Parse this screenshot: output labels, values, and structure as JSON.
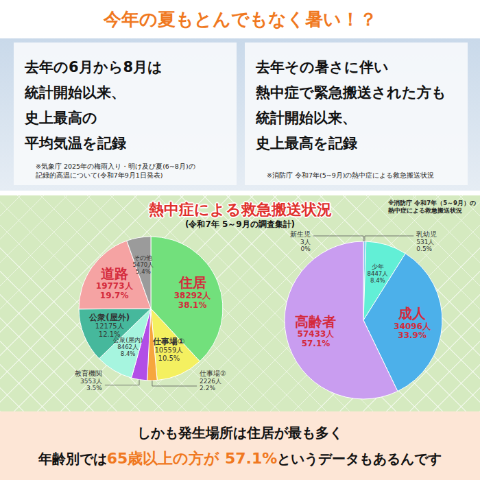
{
  "header": {
    "title": "今年の夏もとんでもなく暑い！？"
  },
  "boxes": [
    {
      "lines": [
        "去年の6月から8月は",
        "統計開始以来、",
        "史上最高の",
        "平均気温を記録"
      ],
      "note": [
        "※気象庁 2025年の梅雨入り・明け及び夏(6~8月)の",
        "記録的高温について(令和7年9月1日発表)"
      ]
    },
    {
      "lines": [
        "去年その暑さに伴い",
        "熱中症で緊急搬送された方も",
        "統計開始以来、",
        "史上最高を記録"
      ],
      "note": [
        "※消防庁 令和7年(5~9月)の熱中症による救急搬送状況"
      ]
    }
  ],
  "chart_panel": {
    "title": "熱中症による救急搬送状況",
    "subtitle": "(令和7年 5～9月の調査集計)",
    "note": [
      "※消防庁 令和7年（5～9月）の",
      "熱中症による救急搬送状況"
    ]
  },
  "chart_data": [
    {
      "type": "pie",
      "categories": [
        "住居",
        "仕事場①",
        "仕事場②",
        "教育機関",
        "公衆(屋内)",
        "公衆(屋外)",
        "道路",
        "その他"
      ],
      "values": [
        38292,
        10559,
        2226,
        3553,
        8462,
        12175,
        19773,
        5470
      ],
      "value_labels": [
        "38292人",
        "10559人",
        "2226人",
        "3553人",
        "8462人",
        "12175人",
        "19773人",
        "5470人"
      ],
      "percent_labels": [
        "38.1%",
        "10.5%",
        "2.2%",
        "3.5%",
        "8.4%",
        "12.1%",
        "19.7%",
        "5.4%"
      ],
      "colors": [
        "#72e07c",
        "#f4f060",
        "#f6a63e",
        "#b24ee6",
        "#a6f5df",
        "#46b89c",
        "#f5a3a3",
        "#9b9b9b"
      ],
      "data_labels": true
    },
    {
      "type": "pie",
      "categories": [
        "新生児",
        "乳幼児",
        "少年",
        "成人",
        "高齢者"
      ],
      "values": [
        3,
        531,
        8447,
        34096,
        57433
      ],
      "value_labels": [
        "3人",
        "531人",
        "8447人",
        "34096人",
        "57433人"
      ],
      "percent_labels": [
        "0%",
        "0.5%",
        "8.4%",
        "33.9%",
        "57.1%"
      ],
      "colors": [
        "#f2c23c",
        "#86cfee",
        "#62efd6",
        "#4cb0ea",
        "#c99df0"
      ],
      "data_labels": true
    }
  ],
  "footer": {
    "lines": [
      [
        {
          "text": "しかも発生場所は住居が最も多く"
        }
      ],
      [
        {
          "text": "年齢別では"
        },
        {
          "text": "65歳以上の方が",
          "color": "#f07820"
        },
        {
          "text": " 57.1%",
          "color": "#f07820"
        },
        {
          "text": "というデータもあるんです"
        }
      ]
    ]
  }
}
